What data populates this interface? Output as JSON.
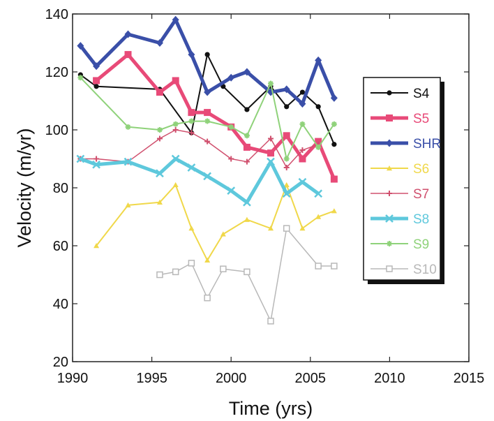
{
  "chart_data": {
    "type": "line",
    "title": "",
    "xlabel": "Time (yrs)",
    "ylabel": "Velocity (m/yr)",
    "xlim": [
      1990,
      2015
    ],
    "ylim": [
      20,
      140
    ],
    "xticks": [
      "1990",
      "1995",
      "2000",
      "2005",
      "2010",
      "2015"
    ],
    "yticks": [
      "20",
      "40",
      "60",
      "80",
      "100",
      "120",
      "140"
    ],
    "grid": false,
    "legend_position": "right",
    "series": [
      {
        "name": "S4",
        "color": "#111111",
        "marker": "circle",
        "width": 2,
        "x": [
          1990.5,
          1991.5,
          1995.5,
          1997.5,
          1998.5,
          1999.5,
          2001,
          2002.5,
          2003.5,
          2004.5,
          2005.5,
          2006.5
        ],
        "y": [
          119,
          115,
          114,
          99,
          126,
          115,
          107,
          115,
          108,
          113,
          108,
          95
        ]
      },
      {
        "name": "S5",
        "color": "#e84a78",
        "marker": "square",
        "width": 5,
        "x": [
          1991.5,
          1993.5,
          1995.5,
          1996.5,
          1997.5,
          1998.5,
          2000,
          2001,
          2002.5,
          2003.5,
          2004.5,
          2005.5,
          2006.5
        ],
        "y": [
          117,
          126,
          113,
          117,
          106,
          106,
          101,
          94,
          92,
          98,
          90,
          96,
          83
        ]
      },
      {
        "name": "SHR",
        "color": "#3a4fa8",
        "marker": "diamond",
        "width": 5,
        "x": [
          1990.5,
          1991.5,
          1993.5,
          1995.5,
          1996.5,
          1997.5,
          1998.5,
          2000,
          2001,
          2002.5,
          2003.5,
          2004.5,
          2005.5,
          2006.5
        ],
        "y": [
          129,
          122,
          133,
          130,
          138,
          126,
          113,
          118,
          120,
          113,
          114,
          109,
          124,
          111
        ]
      },
      {
        "name": "S6",
        "color": "#f0d84a",
        "marker": "triangle",
        "width": 2,
        "x": [
          1991.5,
          1993.5,
          1995.5,
          1996.5,
          1997.5,
          1998.5,
          1999.5,
          2001,
          2002.5,
          2003.5,
          2004.5,
          2005.5,
          2006.5
        ],
        "y": [
          60,
          74,
          75,
          81,
          66,
          55,
          64,
          69,
          66,
          81,
          66,
          70,
          72
        ]
      },
      {
        "name": "S7",
        "color": "#d0506e",
        "marker": "plus",
        "width": 1.5,
        "x": [
          1990.5,
          1991.5,
          1993.5,
          1995.5,
          1996.5,
          1997.5,
          1998.5,
          2000,
          2001,
          2002.5,
          2003.5,
          2004.5,
          2005.5
        ],
        "y": [
          90,
          90,
          89,
          97,
          100,
          99,
          96,
          90,
          89,
          97,
          87,
          93,
          95
        ]
      },
      {
        "name": "S8",
        "color": "#5ec8dc",
        "marker": "cross",
        "width": 5,
        "x": [
          1990.5,
          1991.5,
          1993.5,
          1995.5,
          1996.5,
          1997.5,
          1998.5,
          2000,
          2001,
          2002.5,
          2003.5,
          2004.5,
          2005.5
        ],
        "y": [
          90,
          88,
          89,
          85,
          90,
          87,
          84,
          79,
          75,
          89,
          78,
          82,
          78
        ]
      },
      {
        "name": "S9",
        "color": "#8fd27a",
        "marker": "star",
        "width": 2,
        "x": [
          1990.5,
          1993.5,
          1995.5,
          1996.5,
          1997.5,
          1998.5,
          2000,
          2001,
          2002.5,
          2003.5,
          2004.5,
          2005.5,
          2006.5
        ],
        "y": [
          118,
          101,
          100,
          102,
          103,
          103,
          101,
          98,
          116,
          90,
          102,
          94,
          102
        ]
      },
      {
        "name": "S10",
        "color": "#b8b8b8",
        "marker": "square-open",
        "width": 1.5,
        "x": [
          1995.5,
          1996.5,
          1997.5,
          1998.5,
          1999.5,
          2001,
          2002.5,
          2003.5,
          2005.5,
          2006.5
        ],
        "y": [
          50,
          51,
          54,
          42,
          52,
          51,
          34,
          66,
          53,
          53
        ]
      }
    ]
  }
}
